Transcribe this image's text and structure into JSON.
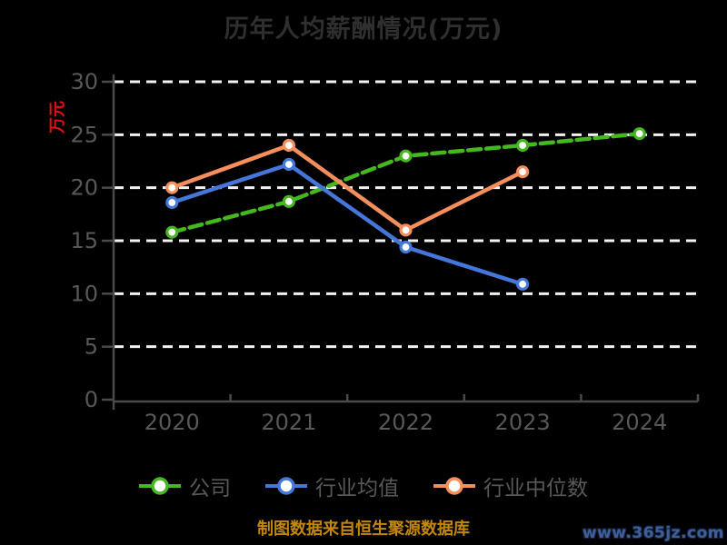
{
  "title": "历年人均薪酬情况(万元)",
  "y_axis_label": "万元",
  "footer": {
    "caption": "制图数据来自恒生聚源数据库",
    "watermark": "www.365jz.com"
  },
  "colors": {
    "background": "#000000",
    "title_text": "#2f2f31",
    "axis_line": "#4a4a4a",
    "tick_text": "#585858",
    "gridline": "#f2f2f2",
    "y_label_red": "#e01112",
    "caption_gold": "#c1870b",
    "watermark_blue": "#3f5f98",
    "series_company_green": "#44b81e",
    "series_industry_avg_blue": "#4576da",
    "series_industry_median_orange": "#f68f5b"
  },
  "chart_data": {
    "type": "line",
    "title": "历年人均薪酬情况(万元)",
    "xlabel": "",
    "ylabel": "万元",
    "categories": [
      "2020",
      "2021",
      "2022",
      "2023",
      "2024"
    ],
    "series": [
      {
        "name": "公司",
        "color": "#44b81e",
        "line_style": "dashed",
        "values": [
          15.8,
          18.7,
          23.0,
          24.0,
          25.1
        ]
      },
      {
        "name": "行业均值",
        "color": "#4576da",
        "line_style": "solid",
        "values": [
          18.6,
          22.2,
          14.4,
          10.9,
          null
        ]
      },
      {
        "name": "行业中位数",
        "color": "#f68f5b",
        "line_style": "solid",
        "values": [
          20.0,
          24.0,
          16.0,
          21.5,
          null
        ]
      }
    ],
    "ylim": [
      0,
      30
    ],
    "yticks": [
      0,
      5,
      10,
      15,
      20,
      25,
      30
    ],
    "grid": true,
    "grid_style": "dashed-white",
    "marker": "circle-white-fill",
    "legend_position": "bottom"
  }
}
